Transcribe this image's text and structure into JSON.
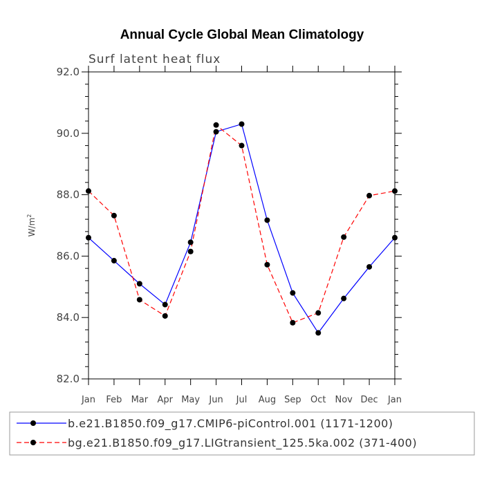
{
  "chart_data": {
    "type": "line",
    "title": "Annual Cycle Global Mean Climatology",
    "subtitle": "Surf latent heat flux",
    "xlabel": "",
    "ylabel": "W/m",
    "ylabel_sup": "2",
    "ylim": [
      82.0,
      92.0
    ],
    "yticks": [
      "82.0",
      "84.0",
      "86.0",
      "88.0",
      "90.0",
      "92.0"
    ],
    "categories": [
      "Jan",
      "Feb",
      "Mar",
      "Apr",
      "May",
      "Jun",
      "Jul",
      "Aug",
      "Sep",
      "Oct",
      "Nov",
      "Dec",
      "Jan"
    ],
    "series": [
      {
        "name": "b.e21.B1850.f09_g17.CMIP6-piControl.001 (1171-1200)",
        "color": "#0000ff",
        "dash": "solid",
        "values": [
          86.6,
          85.85,
          85.1,
          84.42,
          86.45,
          90.05,
          90.3,
          87.17,
          84.8,
          83.5,
          84.62,
          85.65,
          86.6
        ]
      },
      {
        "name": "bg.e21.B1850.f09_g17.LIGtransient_125.5ka.002 (371-400)",
        "color": "#ff0000",
        "dash": "dashed",
        "values": [
          88.12,
          87.32,
          84.58,
          84.05,
          86.15,
          90.27,
          89.6,
          85.72,
          83.83,
          84.15,
          86.62,
          87.97,
          88.12
        ]
      }
    ]
  }
}
